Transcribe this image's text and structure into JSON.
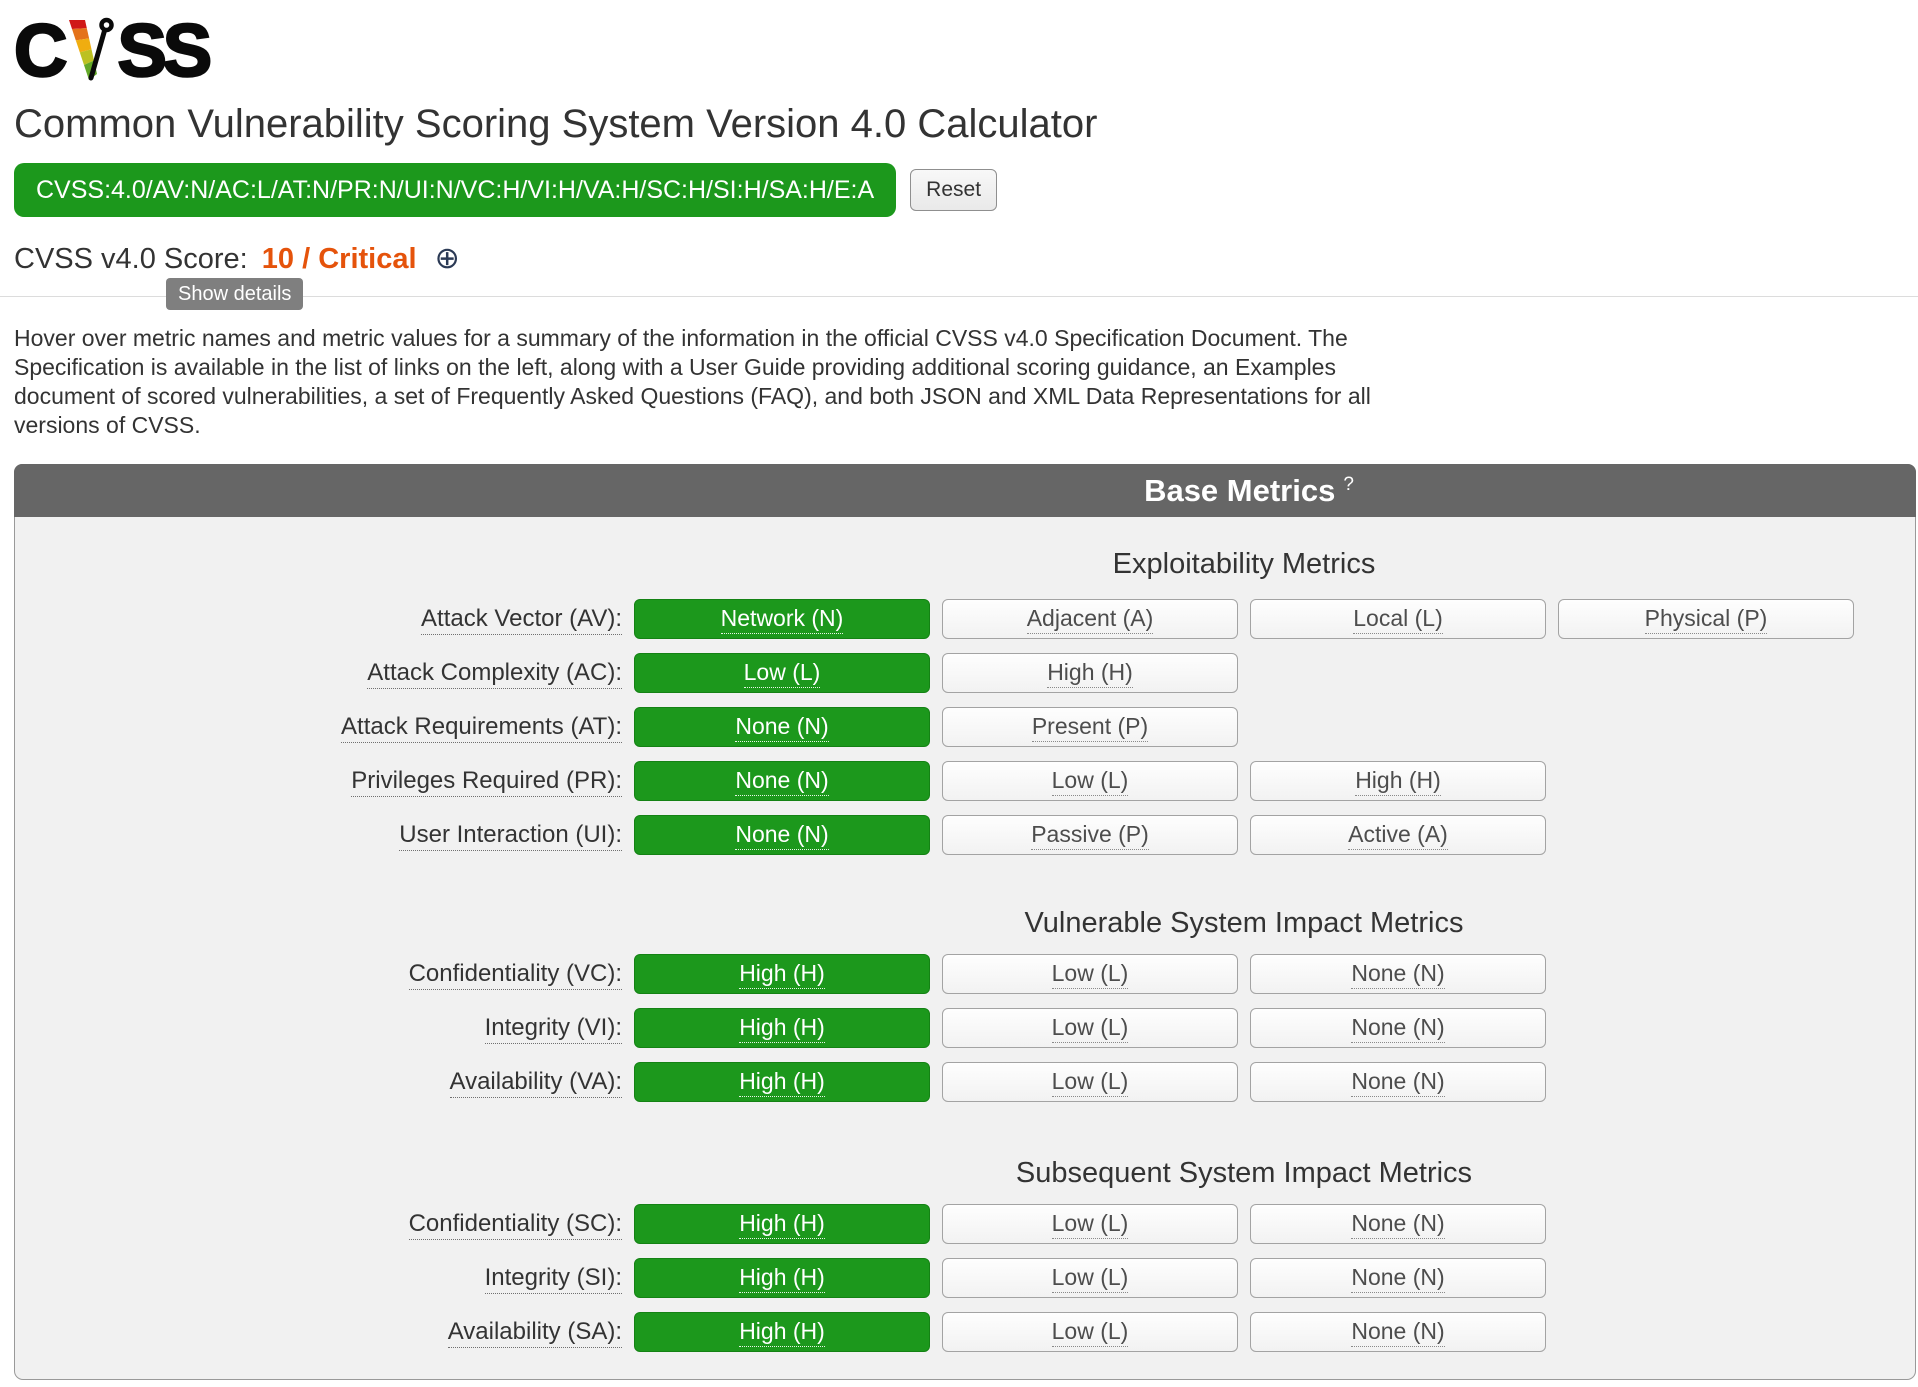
{
  "logo": {
    "prefix": "C",
    "suffix": "SS"
  },
  "header": {
    "title": "Common Vulnerability Scoring System Version 4.0 Calculator",
    "vector_string": "CVSS:4.0/AV:N/AC:L/AT:N/PR:N/UI:N/VC:H/VI:H/VA:H/SC:H/SI:H/SA:H/E:A",
    "reset_label": "Reset",
    "score_label": "CVSS v4.0 Score:",
    "score_value": "10 / Critical",
    "expand_icon": "⊕",
    "tooltip": "Show details"
  },
  "intro_lines": [
    "Hover over metric names and metric values for a summary of the information in the official CVSS v4.0 Specification Document. The",
    "Specification is available in the list of links on the left, along with a User Guide providing additional scoring guidance, an Examples",
    "document of scored vulnerabilities, a set of Frequently Asked Questions (FAQ), and both JSON and XML Data Representations for all",
    "versions of CVSS."
  ],
  "panel": {
    "title": "Base Metrics",
    "help_mark": "?",
    "sections": [
      {
        "id": "exploitability",
        "heading": "Exploitability Metrics",
        "rows": [
          {
            "id": "av",
            "label": "Attack Vector (AV):",
            "options": [
              {
                "id": "n",
                "label": "Network (N)",
                "selected": true
              },
              {
                "id": "a",
                "label": "Adjacent (A)",
                "selected": false
              },
              {
                "id": "l",
                "label": "Local (L)",
                "selected": false
              },
              {
                "id": "p",
                "label": "Physical (P)",
                "selected": false
              }
            ]
          },
          {
            "id": "ac",
            "label": "Attack Complexity (AC):",
            "options": [
              {
                "id": "l",
                "label": "Low (L)",
                "selected": true
              },
              {
                "id": "h",
                "label": "High (H)",
                "selected": false
              }
            ]
          },
          {
            "id": "at",
            "label": "Attack Requirements (AT):",
            "options": [
              {
                "id": "n",
                "label": "None (N)",
                "selected": true
              },
              {
                "id": "p",
                "label": "Present (P)",
                "selected": false
              }
            ]
          },
          {
            "id": "pr",
            "label": "Privileges Required (PR):",
            "options": [
              {
                "id": "n",
                "label": "None (N)",
                "selected": true
              },
              {
                "id": "l",
                "label": "Low (L)",
                "selected": false
              },
              {
                "id": "h",
                "label": "High (H)",
                "selected": false
              }
            ]
          },
          {
            "id": "ui",
            "label": "User Interaction (UI):",
            "options": [
              {
                "id": "n",
                "label": "None (N)",
                "selected": true
              },
              {
                "id": "p",
                "label": "Passive (P)",
                "selected": false
              },
              {
                "id": "a",
                "label": "Active (A)",
                "selected": false
              }
            ]
          }
        ]
      },
      {
        "id": "vulnerable-system-impact",
        "heading": "Vulnerable System Impact Metrics",
        "rows": [
          {
            "id": "vc",
            "label": "Confidentiality (VC):",
            "options": [
              {
                "id": "h",
                "label": "High (H)",
                "selected": true
              },
              {
                "id": "l",
                "label": "Low (L)",
                "selected": false
              },
              {
                "id": "n",
                "label": "None (N)",
                "selected": false
              }
            ]
          },
          {
            "id": "vi",
            "label": "Integrity (VI):",
            "options": [
              {
                "id": "h",
                "label": "High (H)",
                "selected": true
              },
              {
                "id": "l",
                "label": "Low (L)",
                "selected": false
              },
              {
                "id": "n",
                "label": "None (N)",
                "selected": false
              }
            ]
          },
          {
            "id": "va",
            "label": "Availability (VA):",
            "options": [
              {
                "id": "h",
                "label": "High (H)",
                "selected": true
              },
              {
                "id": "l",
                "label": "Low (L)",
                "selected": false
              },
              {
                "id": "n",
                "label": "None (N)",
                "selected": false
              }
            ]
          }
        ]
      },
      {
        "id": "subsequent-system-impact",
        "heading": "Subsequent System Impact Metrics",
        "rows": [
          {
            "id": "sc",
            "label": "Confidentiality (SC):",
            "options": [
              {
                "id": "h",
                "label": "High (H)",
                "selected": true
              },
              {
                "id": "l",
                "label": "Low (L)",
                "selected": false
              },
              {
                "id": "n",
                "label": "None (N)",
                "selected": false
              }
            ]
          },
          {
            "id": "si",
            "label": "Integrity (SI):",
            "options": [
              {
                "id": "h",
                "label": "High (H)",
                "selected": true
              },
              {
                "id": "l",
                "label": "Low (L)",
                "selected": false
              },
              {
                "id": "n",
                "label": "None (N)",
                "selected": false
              }
            ]
          },
          {
            "id": "sa",
            "label": "Availability (SA):",
            "options": [
              {
                "id": "h",
                "label": "High (H)",
                "selected": true
              },
              {
                "id": "l",
                "label": "Low (L)",
                "selected": false
              },
              {
                "id": "n",
                "label": "None (N)",
                "selected": false
              }
            ]
          }
        ]
      }
    ]
  },
  "colors": {
    "selected_green": "#1c981c",
    "score_orange": "#e5530b",
    "header_gray": "#666666",
    "panel_background": "#f1f1f1"
  }
}
